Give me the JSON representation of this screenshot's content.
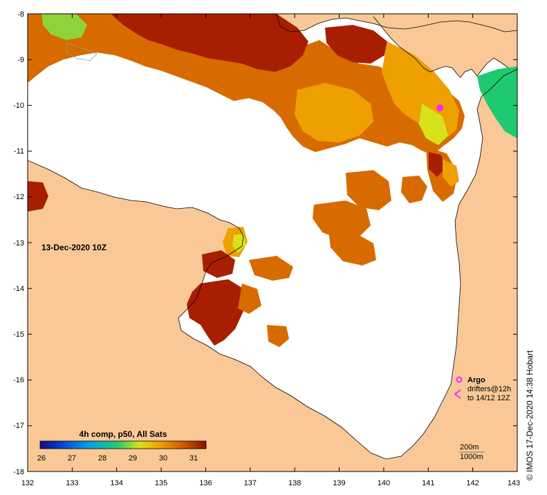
{
  "map": {
    "timestamp_label": "13-Dec-2020 10Z",
    "colorbar": {
      "title": "4h comp, p50, All Sats",
      "ticks": [
        "26",
        "27",
        "28",
        "29",
        "30",
        "31"
      ],
      "min": 26,
      "max": 31.5,
      "stops": [
        "#1a0a7a",
        "#0047d6",
        "#00a4e8",
        "#1fc96f",
        "#d8e21a",
        "#f0a000",
        "#d05a00",
        "#8b0f00"
      ]
    },
    "x_axis": {
      "range": [
        132,
        143
      ],
      "labels": [
        "132",
        "133",
        "134",
        "135",
        "136",
        "137",
        "138",
        "139",
        "140",
        "141",
        "142",
        "143"
      ]
    },
    "y_axis": {
      "range": [
        -18,
        -8
      ],
      "labels": [
        "-8",
        "-9",
        "-10",
        "-11",
        "-12",
        "-13",
        "-14",
        "-15",
        "-16",
        "-17",
        "-18"
      ]
    },
    "legend": {
      "argo": "Argo",
      "drifters": "drifters@12h",
      "drifters_to": "to 14/12 12Z",
      "depth_200": "200m",
      "depth_1000": "1000m"
    },
    "credit": "© IMOS 17-Dec-2020 14:38 Hobart",
    "colors": {
      "land": "#f9c896",
      "sea": "#ffffff",
      "argo_marker": "#ff22ff",
      "sst_hot": "#a81e00",
      "sst_warm": "#d76b00",
      "sst_mid": "#eea000",
      "sst_cool": "#1fc96f"
    }
  }
}
